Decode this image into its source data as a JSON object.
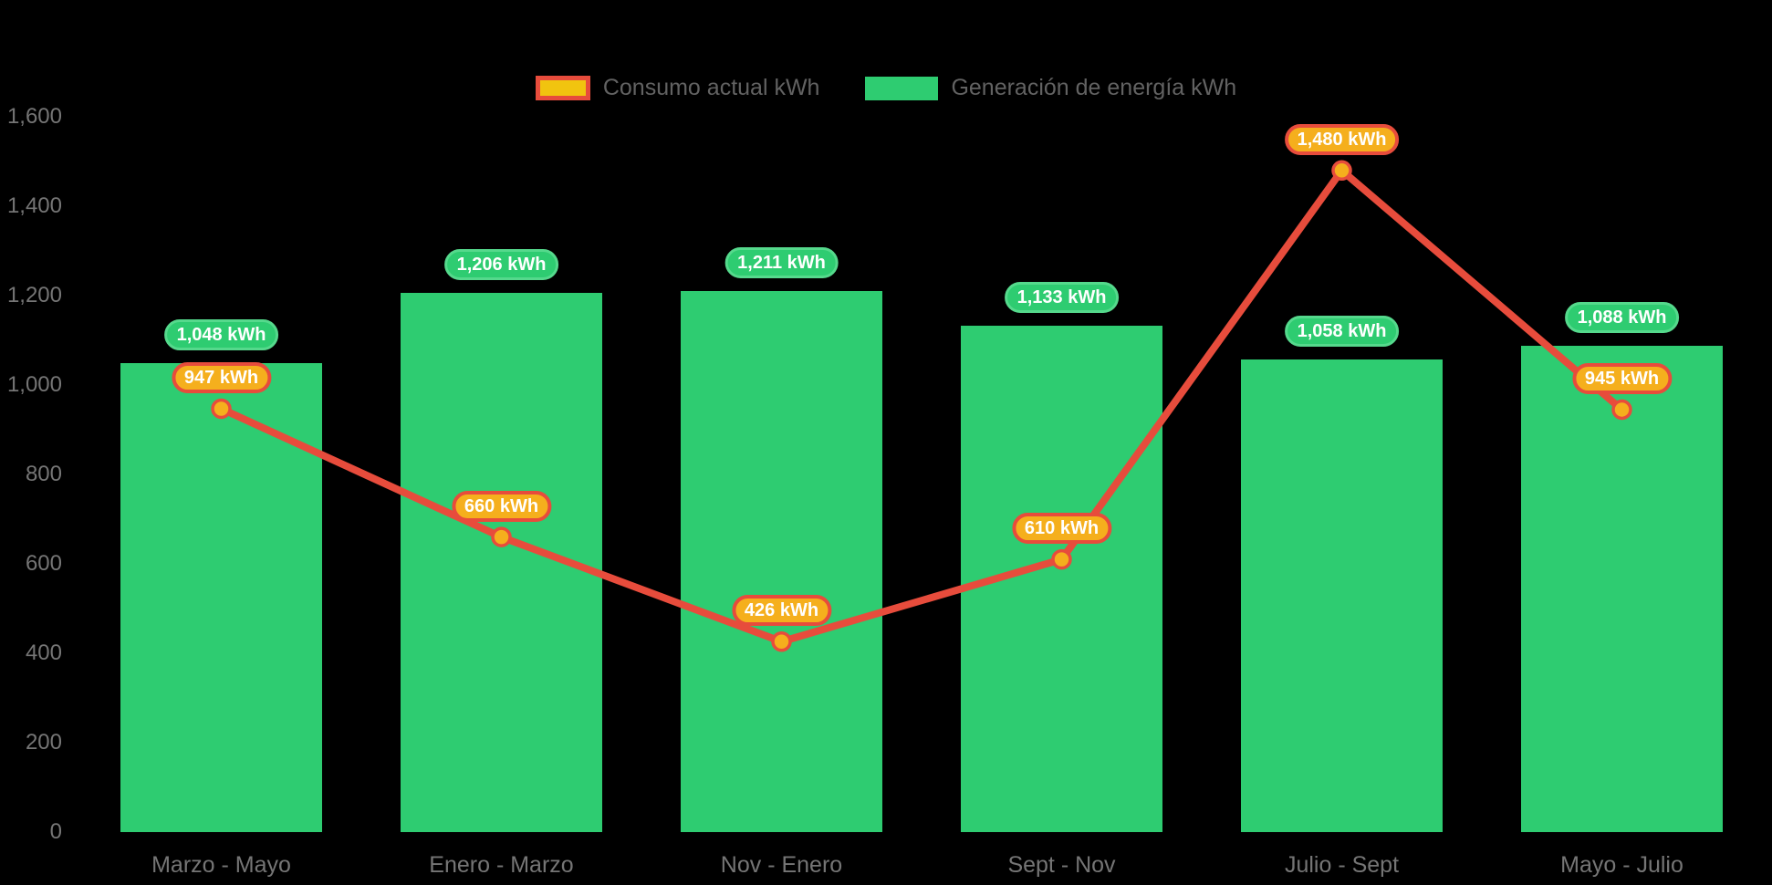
{
  "colors": {
    "background": "#000000",
    "green": "#2ECC71",
    "green_border": "#55D98C",
    "red": "#E74C3C",
    "yellow": "#F5AF1D",
    "yellow_legend": "#F1C40F",
    "axis_text": "#757575",
    "legend_text": "#626262",
    "label_text": "#FFFFFF"
  },
  "legend": {
    "items": [
      {
        "label": "Consumo actual kWh",
        "series": "consumo"
      },
      {
        "label": "Generación de energía kWh",
        "series": "generacion"
      }
    ]
  },
  "chart_data": {
    "type": "bar",
    "categories": [
      "Marzo - Mayo",
      "Enero - Marzo",
      "Nov - Enero",
      "Sept - Nov",
      "Julio - Sept",
      "Mayo - Julio"
    ],
    "series": [
      {
        "name": "Generación de energía kWh",
        "type": "bar",
        "values": [
          1048,
          1206,
          1211,
          1133,
          1058,
          1088
        ]
      },
      {
        "name": "Consumo actual kWh",
        "type": "line",
        "values": [
          947,
          660,
          426,
          610,
          1480,
          945
        ]
      }
    ],
    "title": "",
    "xlabel": "",
    "ylabel": "",
    "ylim": [
      0,
      1600
    ],
    "y_ticks": [
      0,
      200,
      400,
      600,
      800,
      1000,
      1200,
      1400,
      1600
    ],
    "data_label_suffix": " kWh",
    "grid": false,
    "legend_position": "top"
  }
}
